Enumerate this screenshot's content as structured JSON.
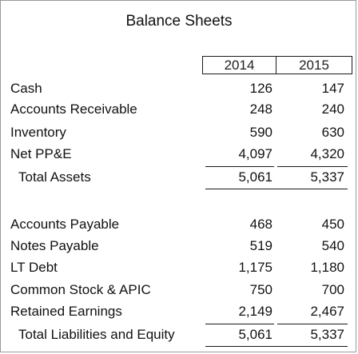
{
  "title": "Balance Sheets",
  "years": [
    "2014",
    "2015"
  ],
  "assets": [
    {
      "label": "Cash",
      "v2014": "126",
      "v2015": "147"
    },
    {
      "label": "Accounts Receivable",
      "v2014": "248",
      "v2015": "240"
    },
    {
      "label": "Inventory",
      "v2014": "590",
      "v2015": "630"
    },
    {
      "label": "Net PP&E",
      "v2014": "4,097",
      "v2015": "4,320"
    }
  ],
  "total_assets": {
    "label": "Total Assets",
    "v2014": "5,061",
    "v2015": "5,337"
  },
  "liabilities": [
    {
      "label": "Accounts Payable",
      "v2014": "468",
      "v2015": "450"
    },
    {
      "label": "Notes Payable",
      "v2014": "519",
      "v2015": "540"
    },
    {
      "label": "LT Debt",
      "v2014": "1,175",
      "v2015": "1,180"
    },
    {
      "label": "Common Stock & APIC",
      "v2014": "750",
      "v2015": "700"
    },
    {
      "label": "Retained Earnings",
      "v2014": "2,149",
      "v2015": "2,467"
    }
  ],
  "total_liabilities_equity": {
    "label": "Total Liabilities and Equity",
    "v2014": "5,061",
    "v2015": "5,337"
  }
}
